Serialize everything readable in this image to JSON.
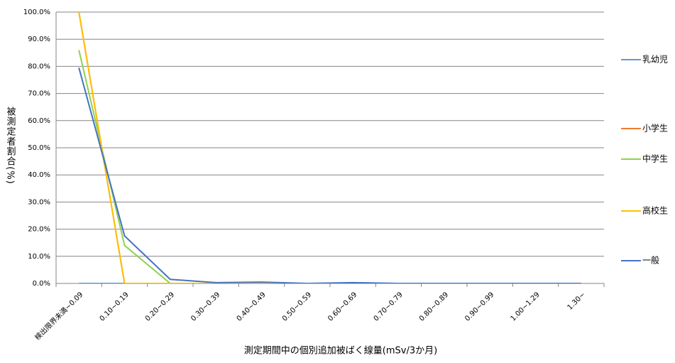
{
  "chart_data": {
    "type": "line",
    "y_label": "被測定者割合(%)",
    "x_label": "測定期間中の個別追加被ばく線量(mSv/3か月)",
    "categories": [
      "検出限界未満~0.09",
      "0.10~0.19",
      "0.20~0.29",
      "0.30~0.39",
      "0.40~0.49",
      "0.50~0.59",
      "0.60~0.69",
      "0.70~0.79",
      "0.80~0.89",
      "0.90~0.99",
      "1.00~1.29",
      "1.30~"
    ],
    "series": [
      {
        "name": "乳幼児",
        "color": "#5b9bd5",
        "values": [
          0,
          0,
          0,
          0,
          0,
          0,
          0,
          0,
          0,
          0,
          0,
          0
        ]
      },
      {
        "name": "小学生",
        "color": "#ed7d31",
        "values": [
          100,
          0,
          0,
          0,
          0,
          0,
          0,
          0,
          0,
          0,
          0,
          0
        ]
      },
      {
        "name": "中学生",
        "color": "#92d050",
        "values": [
          86,
          14,
          0,
          0,
          0,
          0,
          0,
          0,
          0,
          0,
          0,
          0
        ]
      },
      {
        "name": "高校生",
        "color": "#ffc000",
        "values": [
          100,
          0,
          0,
          0,
          0,
          0,
          0,
          0,
          0,
          0,
          0,
          0
        ]
      },
      {
        "name": "一般",
        "color": "#4472c4",
        "values": [
          79.5,
          17.5,
          1.5,
          0.3,
          0.5,
          0,
          0.3,
          0,
          0,
          0,
          0,
          0
        ]
      }
    ],
    "ylim": [
      0,
      100
    ],
    "yticks": [
      {
        "value": 0,
        "label": "0.0%"
      },
      {
        "value": 10,
        "label": "10.0%"
      },
      {
        "value": 20,
        "label": "20.0%"
      },
      {
        "value": 30,
        "label": "30.0%"
      },
      {
        "value": 40,
        "label": "40.0%"
      },
      {
        "value": 50,
        "label": "50.0%"
      },
      {
        "value": 60,
        "label": "60.0%"
      },
      {
        "value": 70,
        "label": "70.0%"
      },
      {
        "value": 80,
        "label": "80.0%"
      },
      {
        "value": 90,
        "label": "90.0%"
      },
      {
        "value": 100,
        "label": "100.0%"
      }
    ],
    "grid": true,
    "legend": "right"
  }
}
